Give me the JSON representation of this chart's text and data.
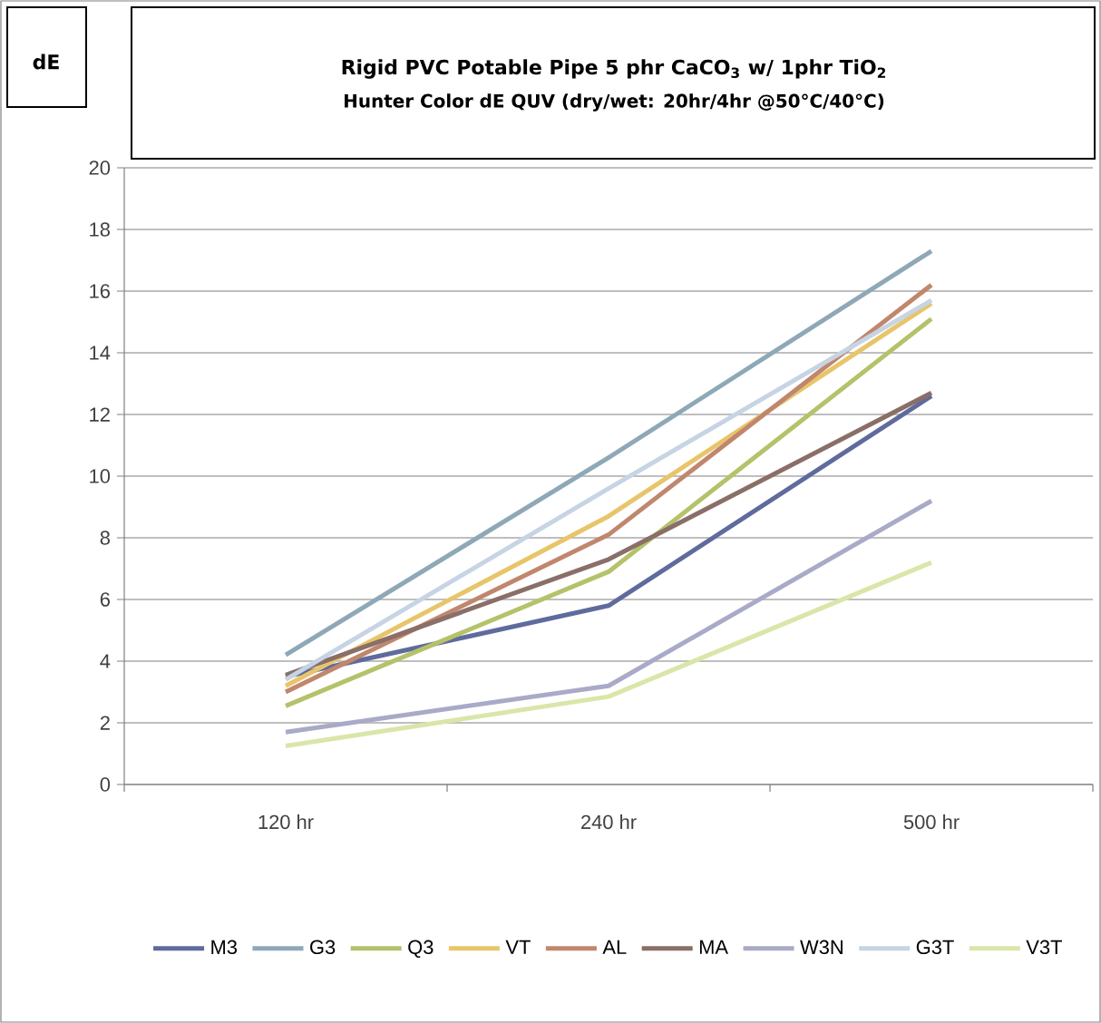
{
  "chart_data": {
    "type": "line",
    "title": "Rigid PVC Potable Pipe 5 phr CaCO$_{3}$ w/ 1phr TiO$_{2}$",
    "subtitle": "Hunter Color dE QUV (dry/wet: 20hr/4hr @50°C/40°C)",
    "ylabel": "dE",
    "categories": [
      "120 hr",
      "240 hr",
      "500 hr"
    ],
    "ylim": [
      0,
      20
    ],
    "yticks": [
      0,
      2,
      4,
      6,
      8,
      10,
      12,
      14,
      16,
      18,
      20
    ],
    "grid": "y",
    "legend": "bottom",
    "series": [
      {
        "name": "M3",
        "color": "#5f6b9c",
        "values": [
          3.5,
          5.8,
          12.6
        ]
      },
      {
        "name": "G3",
        "color": "#8fa8b8",
        "values": [
          4.2,
          10.6,
          17.3
        ]
      },
      {
        "name": "Q3",
        "color": "#b5c26a",
        "values": [
          2.55,
          6.9,
          15.1
        ]
      },
      {
        "name": "VT",
        "color": "#e8c56a",
        "values": [
          3.2,
          8.7,
          15.6
        ]
      },
      {
        "name": "AL",
        "color": "#c0876e",
        "values": [
          3.0,
          8.1,
          16.2
        ]
      },
      {
        "name": "MA",
        "color": "#8a6e68",
        "values": [
          3.55,
          7.3,
          12.7
        ]
      },
      {
        "name": "W3N",
        "color": "#a9aac8",
        "values": [
          1.7,
          3.2,
          9.2
        ]
      },
      {
        "name": "G3T",
        "color": "#c6d4e4",
        "values": [
          3.4,
          9.6,
          15.7
        ]
      },
      {
        "name": "V3T",
        "color": "#d9e6a9",
        "values": [
          1.25,
          2.85,
          7.2
        ]
      }
    ]
  }
}
